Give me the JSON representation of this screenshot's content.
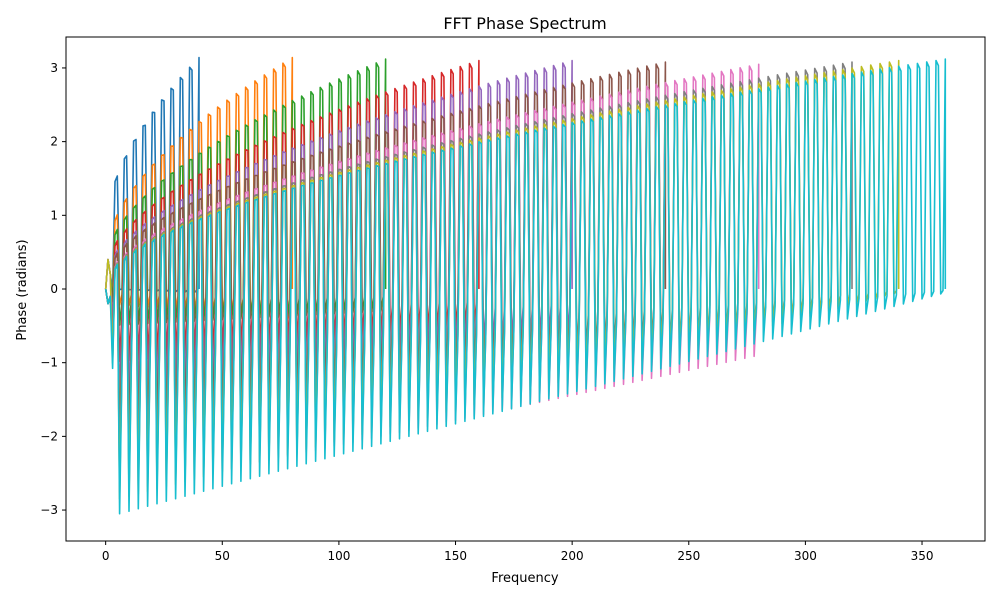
{
  "chart_data": {
    "type": "line",
    "title": "FFT Phase Spectrum",
    "xlabel": "Frequency",
    "ylabel": "Phase (radians)",
    "xlim": [
      -17,
      377
    ],
    "ylim": [
      -3.42,
      3.42
    ],
    "xticks": [
      0,
      50,
      100,
      150,
      200,
      250,
      300,
      350
    ],
    "xtick_labels": [
      "0",
      "50",
      "100",
      "150",
      "200",
      "250",
      "300",
      "350"
    ],
    "yticks": [
      -3,
      -2,
      -1,
      0,
      1,
      2,
      3
    ],
    "ytick_labels": [
      "−3",
      "−2",
      "−1",
      "0",
      "1",
      "2",
      "3"
    ],
    "grid": false,
    "legend": "none",
    "series": [
      {
        "color": "#1f77b4",
        "length": 40,
        "period": 4,
        "start_low": 0.0,
        "end_low": -0.05,
        "start_high": 0.8,
        "end_high": 3.14
      },
      {
        "color": "#ff7f0e",
        "length": 80,
        "period": 4,
        "start_low": -0.2,
        "end_low": -0.4,
        "start_high": 0.4,
        "end_high": 3.14
      },
      {
        "color": "#2ca02c",
        "length": 120,
        "period": 4,
        "start_low": -0.5,
        "end_low": -0.3,
        "start_high": 0.3,
        "end_high": 3.12
      },
      {
        "color": "#d62728",
        "length": 160,
        "period": 4,
        "start_low": -1.0,
        "end_low": -0.5,
        "start_high": 0.2,
        "end_high": 3.1
      },
      {
        "color": "#9467bd",
        "length": 200,
        "period": 4,
        "start_low": -1.5,
        "end_low": -0.6,
        "start_high": 0.1,
        "end_high": 3.1
      },
      {
        "color": "#8c564b",
        "length": 240,
        "period": 4,
        "start_low": -2.0,
        "end_low": -0.7,
        "start_high": 0.1,
        "end_high": 3.08
      },
      {
        "color": "#e377c2",
        "length": 280,
        "period": 4,
        "start_low": -2.8,
        "end_low": -0.9,
        "start_high": 0.0,
        "end_high": 3.05
      },
      {
        "color": "#7f7f7f",
        "length": 320,
        "period": 4,
        "start_low": -2.5,
        "end_low": -0.2,
        "start_high": 0.0,
        "end_high": 3.08
      },
      {
        "color": "#bcbd22",
        "length": 340,
        "period": 4,
        "start_low": -2.9,
        "end_low": -0.05,
        "start_high": 0.0,
        "end_high": 3.1
      },
      {
        "color": "#17becf",
        "length": 360,
        "period": 4,
        "start_low": -3.1,
        "end_low": -0.05,
        "start_high": 0.0,
        "end_high": 3.12
      }
    ]
  }
}
